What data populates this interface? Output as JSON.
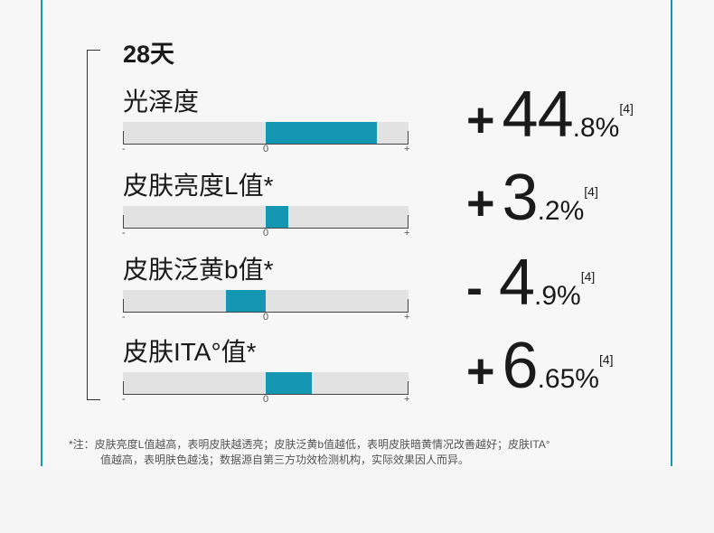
{
  "period_label": "28天",
  "metrics": [
    {
      "title": "光泽度",
      "sign": "+",
      "integer": "44",
      "decimal": ".8%",
      "ref": "[4]",
      "fill_from": 0.5,
      "fill_to": 0.89
    },
    {
      "title": "皮肤亮度L值*",
      "sign": "+",
      "integer": "3",
      "decimal": ".2%",
      "ref": "[4]",
      "fill_from": 0.5,
      "fill_to": 0.58
    },
    {
      "title": "皮肤泛黄b值*",
      "sign": "-",
      "integer": "4",
      "decimal": ".9%",
      "ref": "[4]",
      "fill_from": 0.36,
      "fill_to": 0.5
    },
    {
      "title": "皮肤ITA°值*",
      "sign": "+",
      "integer": "6",
      "decimal": ".65%",
      "ref": "[4]",
      "fill_from": 0.5,
      "fill_to": 0.66
    }
  ],
  "axis": {
    "minus": "-",
    "zero": "0",
    "plus": "+"
  },
  "footnote": {
    "line1": "*注：皮肤亮度L值越高，表明皮肤越透亮；皮肤泛黄b值越低，表明皮肤暗黄情况改善越好；皮肤ITA°",
    "line2": "值越高，表明肤色越浅；数据源自第三方功效检测机构，实际效果因人而异。"
  },
  "colors": {
    "accent": "#1596b3",
    "bar_bg": "#e2e2e2"
  }
}
